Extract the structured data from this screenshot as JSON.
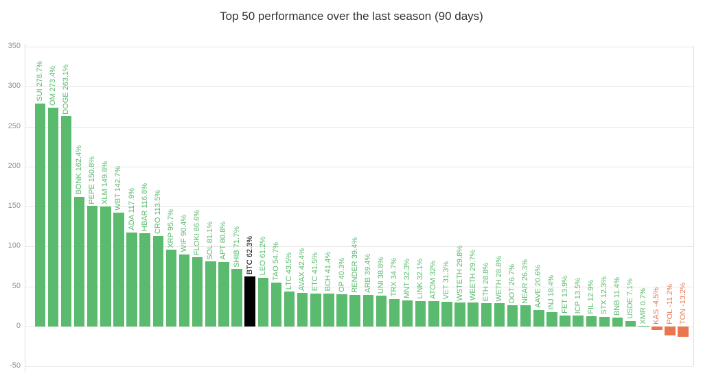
{
  "colors": {
    "positive": "#5aba6d",
    "negative": "#e8764f",
    "btc": "#000000",
    "grid": "#e8e8e8",
    "axis_line": "#dcdcdc",
    "tick_text": "#8f8f8f",
    "title_text": "#333333"
  },
  "chart_data": {
    "type": "bar",
    "title": "Top 50 performance over the last season (90 days)",
    "xlabel": "",
    "ylabel": "",
    "ylim": [
      -50,
      350
    ],
    "y_ticks": [
      350,
      300,
      250,
      200,
      150,
      100,
      50,
      0,
      -50
    ],
    "grid": true,
    "legend": "none",
    "bar_label_format": "TICKER value%",
    "series": [
      {
        "ticker": "SUI",
        "value": 278.7,
        "label": "SUI 278.7%",
        "color": "positive"
      },
      {
        "ticker": "OM",
        "value": 273.4,
        "label": "OM 273.4%",
        "color": "positive"
      },
      {
        "ticker": "DOGE",
        "value": 263.1,
        "label": "DOGE 263.1%",
        "color": "positive"
      },
      {
        "ticker": "BONK",
        "value": 162.4,
        "label": "BONK 162.4%",
        "color": "positive"
      },
      {
        "ticker": "PEPE",
        "value": 150.8,
        "label": "PEPE 150.8%",
        "color": "positive"
      },
      {
        "ticker": "XLM",
        "value": 149.8,
        "label": "XLM 149.8%",
        "color": "positive"
      },
      {
        "ticker": "WBT",
        "value": 142.7,
        "label": "WBT 142.7%",
        "color": "positive"
      },
      {
        "ticker": "ADA",
        "value": 117.9,
        "label": "ADA 117.9%",
        "color": "positive"
      },
      {
        "ticker": "HBAR",
        "value": 116.8,
        "label": "HBAR 116.8%",
        "color": "positive"
      },
      {
        "ticker": "CRO",
        "value": 113.5,
        "label": "CRO 113.5%",
        "color": "positive"
      },
      {
        "ticker": "XRP",
        "value": 95.7,
        "label": "XRP 95.7%",
        "color": "positive"
      },
      {
        "ticker": "WIF",
        "value": 90.4,
        "label": "WIF 90.4%",
        "color": "positive"
      },
      {
        "ticker": "FLOKI",
        "value": 86.6,
        "label": "FLOKI 86.6%",
        "color": "positive"
      },
      {
        "ticker": "SOL",
        "value": 81.1,
        "label": "SOL 81.1%",
        "color": "positive"
      },
      {
        "ticker": "APT",
        "value": 80.8,
        "label": "APT 80.8%",
        "color": "positive"
      },
      {
        "ticker": "SHIB",
        "value": 71.7,
        "label": "SHIB 71.7%",
        "color": "positive"
      },
      {
        "ticker": "BTC",
        "value": 62.3,
        "label": "BTC 62.3%",
        "color": "btc"
      },
      {
        "ticker": "LEO",
        "value": 61.2,
        "label": "LEO 61.2%",
        "color": "positive"
      },
      {
        "ticker": "TAO",
        "value": 54.7,
        "label": "TAO 54.7%",
        "color": "positive"
      },
      {
        "ticker": "LTC",
        "value": 43.5,
        "label": "LTC 43.5%",
        "color": "positive"
      },
      {
        "ticker": "AVAX",
        "value": 42.4,
        "label": "AVAX 42.4%",
        "color": "positive"
      },
      {
        "ticker": "ETC",
        "value": 41.5,
        "label": "ETC 41.5%",
        "color": "positive"
      },
      {
        "ticker": "BCH",
        "value": 41.4,
        "label": "BCH 41.4%",
        "color": "positive"
      },
      {
        "ticker": "OP",
        "value": 40.3,
        "label": "OP 40.3%",
        "color": "positive"
      },
      {
        "ticker": "RENDER",
        "value": 39.4,
        "label": "RENDER 39.4%",
        "color": "positive"
      },
      {
        "ticker": "ARB",
        "value": 39.4,
        "label": "ARB 39.4%",
        "color": "positive"
      },
      {
        "ticker": "UNI",
        "value": 38.8,
        "label": "UNI 38.8%",
        "color": "positive"
      },
      {
        "ticker": "TRX",
        "value": 34.7,
        "label": "TRX 34.7%",
        "color": "positive"
      },
      {
        "ticker": "MNT",
        "value": 32.3,
        "label": "MNT 32.3%",
        "color": "positive"
      },
      {
        "ticker": "LINK",
        "value": 32.1,
        "label": "LINK 32.1%",
        "color": "positive"
      },
      {
        "ticker": "ATOM",
        "value": 32,
        "label": "ATOM 32%",
        "color": "positive"
      },
      {
        "ticker": "VET",
        "value": 31.3,
        "label": "VET 31.3%",
        "color": "positive"
      },
      {
        "ticker": "WSTETH",
        "value": 29.8,
        "label": "WSTETH 29.8%",
        "color": "positive"
      },
      {
        "ticker": "WEETH",
        "value": 29.7,
        "label": "WEETH 29.7%",
        "color": "positive"
      },
      {
        "ticker": "ETH",
        "value": 28.8,
        "label": "ETH 28.8%",
        "color": "positive"
      },
      {
        "ticker": "WETH",
        "value": 28.8,
        "label": "WETH 28.8%",
        "color": "positive"
      },
      {
        "ticker": "DOT",
        "value": 26.7,
        "label": "DOT 26.7%",
        "color": "positive"
      },
      {
        "ticker": "NEAR",
        "value": 26.3,
        "label": "NEAR 26.3%",
        "color": "positive"
      },
      {
        "ticker": "AAVE",
        "value": 20.6,
        "label": "AAVE 20.6%",
        "color": "positive"
      },
      {
        "ticker": "INJ",
        "value": 18.4,
        "label": "INJ 18.4%",
        "color": "positive"
      },
      {
        "ticker": "FET",
        "value": 13.9,
        "label": "FET 13.9%",
        "color": "positive"
      },
      {
        "ticker": "ICP",
        "value": 13.5,
        "label": "ICP 13.5%",
        "color": "positive"
      },
      {
        "ticker": "FIL",
        "value": 12.9,
        "label": "FIL 12.9%",
        "color": "positive"
      },
      {
        "ticker": "STX",
        "value": 12.3,
        "label": "STX 12.3%",
        "color": "positive"
      },
      {
        "ticker": "BNB",
        "value": 11.4,
        "label": "BNB 11.4%",
        "color": "positive"
      },
      {
        "ticker": "USDE",
        "value": 7.1,
        "label": "USDE 7.1%",
        "color": "positive"
      },
      {
        "ticker": "XMR",
        "value": 0.7,
        "label": "XMR 0.7%",
        "color": "positive"
      },
      {
        "ticker": "KAS",
        "value": -4.5,
        "label": "KAS -4.5%",
        "color": "negative"
      },
      {
        "ticker": "POL",
        "value": -11.2,
        "label": "POL -11.2%",
        "color": "negative"
      },
      {
        "ticker": "TON",
        "value": -13.2,
        "label": "TON -13.2%",
        "color": "negative"
      }
    ]
  }
}
